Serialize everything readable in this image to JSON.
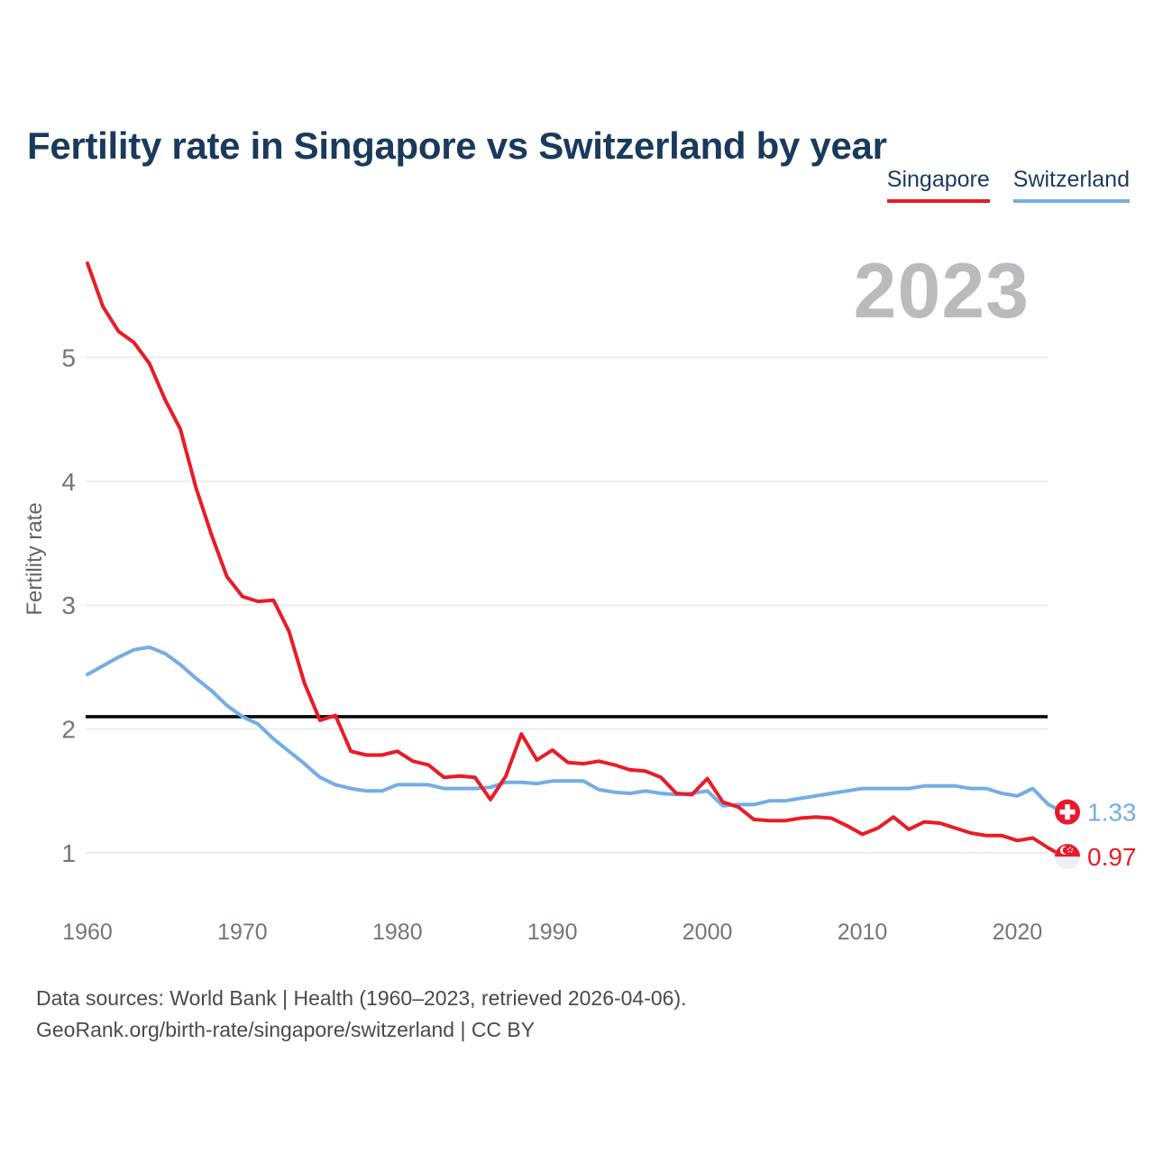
{
  "title": "Fertility rate in Singapore vs Switzerland by year",
  "watermark": "2023",
  "legend": [
    {
      "label": "Singapore",
      "color": "#e81c25"
    },
    {
      "label": "Switzerland",
      "color": "#74ade5"
    }
  ],
  "footer": {
    "line1": "Data sources: World Bank | Health (1960–2023, retrieved 2026-04-06).",
    "line2": "GeoRank.org/birth-rate/singapore/switzerland | CC BY"
  },
  "colors": {
    "title_text": "#1a3a5c",
    "axis_text": "#6e7780",
    "gridline": "#ececec",
    "reference_line": "#0a0a0a",
    "watermark": "#b9bcbf",
    "flag_red": "#e8192c",
    "singapore_red": "#e81c25",
    "switzerland_blue": "#74ade5"
  },
  "chart_data": {
    "type": "line",
    "title": "Fertility rate in Singapore vs Switzerland by year",
    "xlabel": "",
    "ylabel": "Fertility rate",
    "x_start": 1960,
    "x_end": 2023,
    "x_ticks": [
      1960,
      1970,
      1980,
      1990,
      2000,
      2010,
      2020
    ],
    "y_ticks": [
      1,
      2,
      3,
      4,
      5
    ],
    "ylim": [
      0.7,
      5.9
    ],
    "grid": "horizontal",
    "legend_position": "top-right",
    "reference_line": {
      "value": 2.1
    },
    "series": [
      {
        "name": "Singapore",
        "color": "#e81c25",
        "flag": "singapore",
        "end_label": "0.97",
        "values": [
          5.76,
          5.41,
          5.21,
          5.12,
          4.95,
          4.66,
          4.42,
          3.95,
          3.57,
          3.23,
          3.07,
          3.03,
          3.04,
          2.79,
          2.37,
          2.07,
          2.11,
          1.82,
          1.79,
          1.79,
          1.82,
          1.74,
          1.71,
          1.61,
          1.62,
          1.61,
          1.43,
          1.62,
          1.96,
          1.75,
          1.83,
          1.73,
          1.72,
          1.74,
          1.71,
          1.67,
          1.66,
          1.61,
          1.48,
          1.47,
          1.6,
          1.41,
          1.37,
          1.27,
          1.26,
          1.26,
          1.28,
          1.29,
          1.28,
          1.22,
          1.15,
          1.2,
          1.29,
          1.19,
          1.25,
          1.24,
          1.2,
          1.16,
          1.14,
          1.14,
          1.1,
          1.12,
          1.04,
          0.97
        ]
      },
      {
        "name": "Switzerland",
        "color": "#74ade5",
        "flag": "switzerland",
        "end_label": "1.33",
        "values": [
          2.44,
          2.51,
          2.58,
          2.64,
          2.66,
          2.61,
          2.52,
          2.41,
          2.31,
          2.19,
          2.1,
          2.04,
          1.92,
          1.82,
          1.72,
          1.61,
          1.55,
          1.52,
          1.5,
          1.5,
          1.55,
          1.55,
          1.55,
          1.52,
          1.52,
          1.52,
          1.53,
          1.57,
          1.57,
          1.56,
          1.58,
          1.58,
          1.58,
          1.51,
          1.49,
          1.48,
          1.5,
          1.48,
          1.47,
          1.48,
          1.5,
          1.38,
          1.39,
          1.39,
          1.42,
          1.42,
          1.44,
          1.46,
          1.48,
          1.5,
          1.52,
          1.52,
          1.52,
          1.52,
          1.54,
          1.54,
          1.54,
          1.52,
          1.52,
          1.48,
          1.46,
          1.52,
          1.39,
          1.33
        ]
      }
    ]
  }
}
